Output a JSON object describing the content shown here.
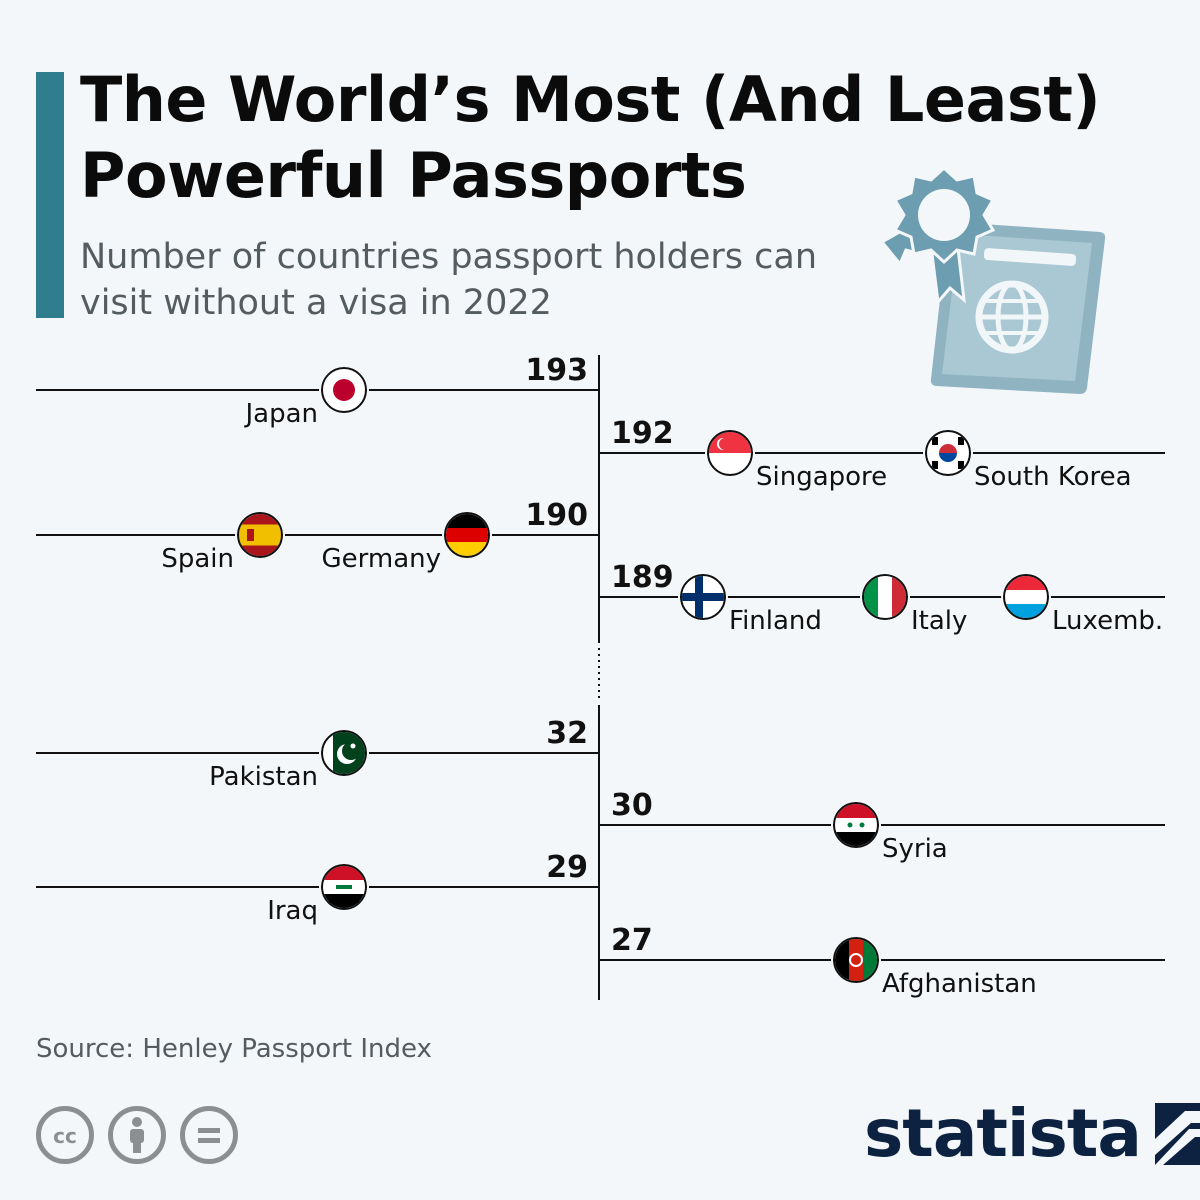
{
  "header": {
    "title": "The World’s Most (And Least) Powerful Passports",
    "subtitle": "Number of countries passport holders can visit without a visa in 2022"
  },
  "footer": {
    "source": "Source: Henley Passport Index",
    "brand": "statista",
    "license_icons": [
      "creative-commons-icon",
      "attribution-icon",
      "no-derivatives-icon"
    ]
  },
  "colors": {
    "accent": "#2f7d8e",
    "background": "#f4f7fa",
    "line": "#1a1a1a",
    "brand": "#0c2240",
    "passport_illustration": "#8fb3c1"
  },
  "chart_data": {
    "type": "dot",
    "groups": [
      {
        "name": "most",
        "rows": [
          {
            "value": 193,
            "countries": [
              {
                "name": "Japan",
                "flag": "japan"
              }
            ]
          },
          {
            "value": 192,
            "countries": [
              {
                "name": "Singapore",
                "flag": "singapore"
              },
              {
                "name": "South Korea",
                "flag": "south-korea"
              }
            ]
          },
          {
            "value": 190,
            "countries": [
              {
                "name": "Spain",
                "flag": "spain"
              },
              {
                "name": "Germany",
                "flag": "germany"
              }
            ]
          },
          {
            "value": 189,
            "countries": [
              {
                "name": "Finland",
                "flag": "finland"
              },
              {
                "name": "Italy",
                "flag": "italy"
              },
              {
                "name": "Luxemb.",
                "flag": "luxembourg"
              }
            ]
          }
        ]
      },
      {
        "name": "least",
        "rows": [
          {
            "value": 32,
            "countries": [
              {
                "name": "Pakistan",
                "flag": "pakistan"
              }
            ]
          },
          {
            "value": 30,
            "countries": [
              {
                "name": "Syria",
                "flag": "syria"
              }
            ]
          },
          {
            "value": 29,
            "countries": [
              {
                "name": "Iraq",
                "flag": "iraq"
              }
            ]
          },
          {
            "value": 27,
            "countries": [
              {
                "name": "Afghanistan",
                "flag": "afghanistan"
              }
            ]
          }
        ]
      }
    ]
  }
}
